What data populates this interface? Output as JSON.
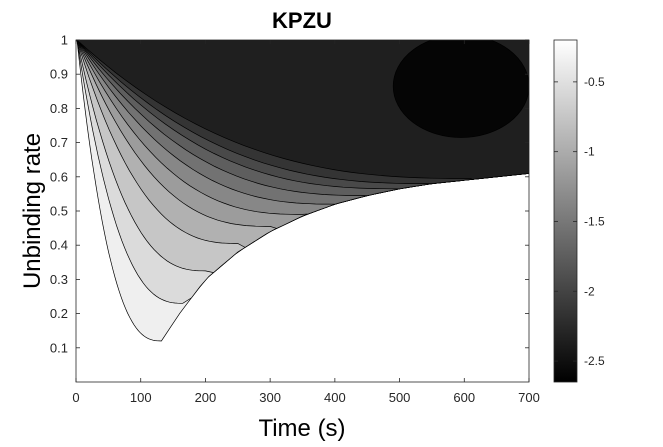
{
  "chart_data": {
    "type": "contourf",
    "title": "KPZU",
    "xlabel": "Time (s)",
    "ylabel": "Unbinding rate",
    "xlim": [
      0,
      700
    ],
    "ylim": [
      0,
      1
    ],
    "xticks": [
      0,
      100,
      200,
      300,
      400,
      500,
      600,
      700
    ],
    "xtick_labels": [
      "0",
      "100",
      "200",
      "300",
      "400",
      "500",
      "600",
      "700"
    ],
    "yticks": [
      0.1,
      0.2,
      0.3,
      0.4,
      0.5,
      0.6,
      0.7,
      0.8,
      0.9,
      1
    ],
    "ytick_labels": [
      "0.1",
      "0.2",
      "0.3",
      "0.4",
      "0.5",
      "0.6",
      "0.7",
      "0.8",
      "0.9",
      "1"
    ],
    "colormap": "gray",
    "colorbar": {
      "range": [
        -2.65,
        -0.2
      ],
      "ticks": [
        -0.5,
        -1,
        -1.5,
        -2,
        -2.5
      ],
      "tick_labels": [
        "-0.5",
        "-1",
        "-1.5",
        "-2",
        "-2.5"
      ]
    },
    "levels": [
      {
        "value": -0.35,
        "min_point": [
          132,
          0.12
        ]
      },
      {
        "value": -0.55,
        "min_point": [
          165,
          0.23
        ]
      },
      {
        "value": -0.75,
        "min_point": [
          200,
          0.325
        ]
      },
      {
        "value": -0.95,
        "min_point": [
          250,
          0.405
        ]
      },
      {
        "value": -1.15,
        "min_point": [
          300,
          0.455
        ]
      },
      {
        "value": -1.35,
        "min_point": [
          350,
          0.49
        ]
      },
      {
        "value": -1.55,
        "min_point": [
          400,
          0.52
        ]
      },
      {
        "value": -1.75,
        "min_point": [
          450,
          0.545
        ]
      },
      {
        "value": -1.95,
        "min_point": [
          500,
          0.565
        ]
      },
      {
        "value": -2.15,
        "min_point": [
          550,
          0.58
        ]
      },
      {
        "value": -2.35,
        "min_point": [
          610,
          0.595
        ]
      }
    ],
    "boundary": [
      [
        132,
        0.12
      ],
      [
        160,
        0.2
      ],
      [
        200,
        0.3
      ],
      [
        250,
        0.38
      ],
      [
        300,
        0.44
      ],
      [
        350,
        0.485
      ],
      [
        400,
        0.52
      ],
      [
        450,
        0.545
      ],
      [
        500,
        0.565
      ],
      [
        550,
        0.58
      ],
      [
        600,
        0.59
      ],
      [
        650,
        0.6
      ],
      [
        700,
        0.61
      ]
    ],
    "dark_region": {
      "value": -2.6,
      "center": [
        595,
        0.865
      ],
      "x_half_width": 105,
      "y_half_height": 0.15
    }
  }
}
